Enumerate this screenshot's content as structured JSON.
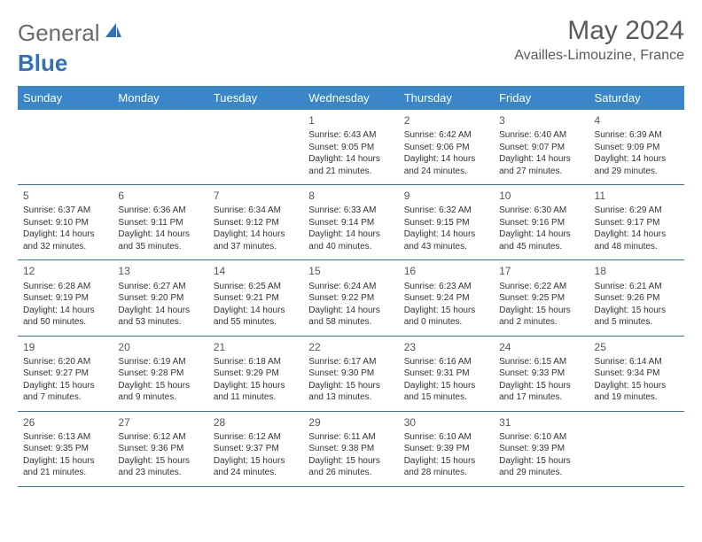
{
  "colors": {
    "header_bg": "#3a86c8",
    "header_text": "#ffffff",
    "logo_gray": "#6b6b6b",
    "logo_blue": "#2f72b8",
    "title_text": "#5a5a5a",
    "cell_border": "#2f72b8",
    "body_text": "#333333"
  },
  "logo": {
    "part1": "General",
    "part2": "Blue"
  },
  "title": "May 2024",
  "location": "Availles-Limouzine, France",
  "weekdays": [
    "Sunday",
    "Monday",
    "Tuesday",
    "Wednesday",
    "Thursday",
    "Friday",
    "Saturday"
  ],
  "weeks": [
    [
      null,
      null,
      null,
      null,
      {
        "d": "1",
        "sr": "6:43 AM",
        "ss": "9:05 PM",
        "dl1": "Daylight: 14 hours",
        "dl2": "and 21 minutes."
      },
      {
        "d": "2",
        "sr": "6:42 AM",
        "ss": "9:06 PM",
        "dl1": "Daylight: 14 hours",
        "dl2": "and 24 minutes."
      },
      {
        "d": "3",
        "sr": "6:40 AM",
        "ss": "9:07 PM",
        "dl1": "Daylight: 14 hours",
        "dl2": "and 27 minutes."
      },
      {
        "d": "4",
        "sr": "6:39 AM",
        "ss": "9:09 PM",
        "dl1": "Daylight: 14 hours",
        "dl2": "and 29 minutes."
      }
    ],
    [
      {
        "d": "5",
        "sr": "6:37 AM",
        "ss": "9:10 PM",
        "dl1": "Daylight: 14 hours",
        "dl2": "and 32 minutes."
      },
      {
        "d": "6",
        "sr": "6:36 AM",
        "ss": "9:11 PM",
        "dl1": "Daylight: 14 hours",
        "dl2": "and 35 minutes."
      },
      {
        "d": "7",
        "sr": "6:34 AM",
        "ss": "9:12 PM",
        "dl1": "Daylight: 14 hours",
        "dl2": "and 37 minutes."
      },
      {
        "d": "8",
        "sr": "6:33 AM",
        "ss": "9:14 PM",
        "dl1": "Daylight: 14 hours",
        "dl2": "and 40 minutes."
      },
      {
        "d": "9",
        "sr": "6:32 AM",
        "ss": "9:15 PM",
        "dl1": "Daylight: 14 hours",
        "dl2": "and 43 minutes."
      },
      {
        "d": "10",
        "sr": "6:30 AM",
        "ss": "9:16 PM",
        "dl1": "Daylight: 14 hours",
        "dl2": "and 45 minutes."
      },
      {
        "d": "11",
        "sr": "6:29 AM",
        "ss": "9:17 PM",
        "dl1": "Daylight: 14 hours",
        "dl2": "and 48 minutes."
      }
    ],
    [
      {
        "d": "12",
        "sr": "6:28 AM",
        "ss": "9:19 PM",
        "dl1": "Daylight: 14 hours",
        "dl2": "and 50 minutes."
      },
      {
        "d": "13",
        "sr": "6:27 AM",
        "ss": "9:20 PM",
        "dl1": "Daylight: 14 hours",
        "dl2": "and 53 minutes."
      },
      {
        "d": "14",
        "sr": "6:25 AM",
        "ss": "9:21 PM",
        "dl1": "Daylight: 14 hours",
        "dl2": "and 55 minutes."
      },
      {
        "d": "15",
        "sr": "6:24 AM",
        "ss": "9:22 PM",
        "dl1": "Daylight: 14 hours",
        "dl2": "and 58 minutes."
      },
      {
        "d": "16",
        "sr": "6:23 AM",
        "ss": "9:24 PM",
        "dl1": "Daylight: 15 hours",
        "dl2": "and 0 minutes."
      },
      {
        "d": "17",
        "sr": "6:22 AM",
        "ss": "9:25 PM",
        "dl1": "Daylight: 15 hours",
        "dl2": "and 2 minutes."
      },
      {
        "d": "18",
        "sr": "6:21 AM",
        "ss": "9:26 PM",
        "dl1": "Daylight: 15 hours",
        "dl2": "and 5 minutes."
      }
    ],
    [
      {
        "d": "19",
        "sr": "6:20 AM",
        "ss": "9:27 PM",
        "dl1": "Daylight: 15 hours",
        "dl2": "and 7 minutes."
      },
      {
        "d": "20",
        "sr": "6:19 AM",
        "ss": "9:28 PM",
        "dl1": "Daylight: 15 hours",
        "dl2": "and 9 minutes."
      },
      {
        "d": "21",
        "sr": "6:18 AM",
        "ss": "9:29 PM",
        "dl1": "Daylight: 15 hours",
        "dl2": "and 11 minutes."
      },
      {
        "d": "22",
        "sr": "6:17 AM",
        "ss": "9:30 PM",
        "dl1": "Daylight: 15 hours",
        "dl2": "and 13 minutes."
      },
      {
        "d": "23",
        "sr": "6:16 AM",
        "ss": "9:31 PM",
        "dl1": "Daylight: 15 hours",
        "dl2": "and 15 minutes."
      },
      {
        "d": "24",
        "sr": "6:15 AM",
        "ss": "9:33 PM",
        "dl1": "Daylight: 15 hours",
        "dl2": "and 17 minutes."
      },
      {
        "d": "25",
        "sr": "6:14 AM",
        "ss": "9:34 PM",
        "dl1": "Daylight: 15 hours",
        "dl2": "and 19 minutes."
      }
    ],
    [
      {
        "d": "26",
        "sr": "6:13 AM",
        "ss": "9:35 PM",
        "dl1": "Daylight: 15 hours",
        "dl2": "and 21 minutes."
      },
      {
        "d": "27",
        "sr": "6:12 AM",
        "ss": "9:36 PM",
        "dl1": "Daylight: 15 hours",
        "dl2": "and 23 minutes."
      },
      {
        "d": "28",
        "sr": "6:12 AM",
        "ss": "9:37 PM",
        "dl1": "Daylight: 15 hours",
        "dl2": "and 24 minutes."
      },
      {
        "d": "29",
        "sr": "6:11 AM",
        "ss": "9:38 PM",
        "dl1": "Daylight: 15 hours",
        "dl2": "and 26 minutes."
      },
      {
        "d": "30",
        "sr": "6:10 AM",
        "ss": "9:39 PM",
        "dl1": "Daylight: 15 hours",
        "dl2": "and 28 minutes."
      },
      {
        "d": "31",
        "sr": "6:10 AM",
        "ss": "9:39 PM",
        "dl1": "Daylight: 15 hours",
        "dl2": "and 29 minutes."
      },
      null
    ]
  ],
  "labels": {
    "sunrise": "Sunrise:",
    "sunset": "Sunset:"
  }
}
